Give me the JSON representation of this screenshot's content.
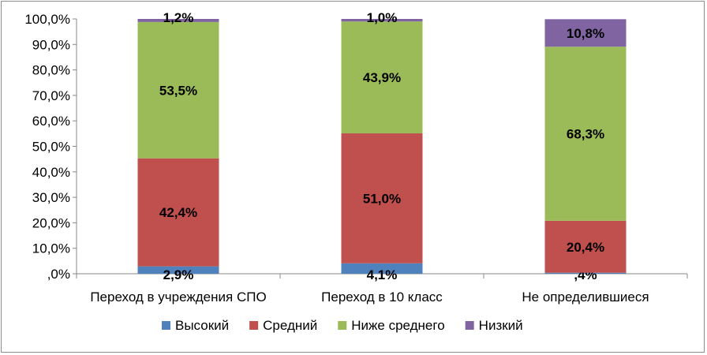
{
  "chart_data": {
    "type": "bar",
    "stacked": true,
    "categories": [
      "Переход в учреждения СПО",
      "Переход в 10 класс",
      "Не определившиеся"
    ],
    "series": [
      {
        "name": "Высокий",
        "color": "#4f81bd",
        "values": [
          2.9,
          4.1,
          0.4
        ],
        "labels": [
          "2,9%",
          "4,1%",
          ",4%"
        ]
      },
      {
        "name": "Средний",
        "color": "#c0504d",
        "values": [
          42.4,
          51.0,
          20.4
        ],
        "labels": [
          "42,4%",
          "51,0%",
          "20,4%"
        ]
      },
      {
        "name": "Ниже среднего",
        "color": "#9bbb59",
        "values": [
          53.5,
          43.9,
          68.3
        ],
        "labels": [
          "53,5%",
          "43,9%",
          "68,3%"
        ]
      },
      {
        "name": "Низкий",
        "color": "#8064a2",
        "values": [
          1.2,
          1.0,
          10.8
        ],
        "labels": [
          "1,2%",
          "1,0%",
          "10,8%"
        ]
      }
    ],
    "yticks": [
      ",0%",
      "10,0%",
      "20,0%",
      "30,0%",
      "40,0%",
      "50,0%",
      "60,0%",
      "70,0%",
      "80,0%",
      "90,0%",
      "100,0%"
    ],
    "ylim": [
      0,
      100
    ],
    "grid": false,
    "legend_position": "bottom",
    "title": "",
    "xlabel": "",
    "ylabel": ""
  }
}
